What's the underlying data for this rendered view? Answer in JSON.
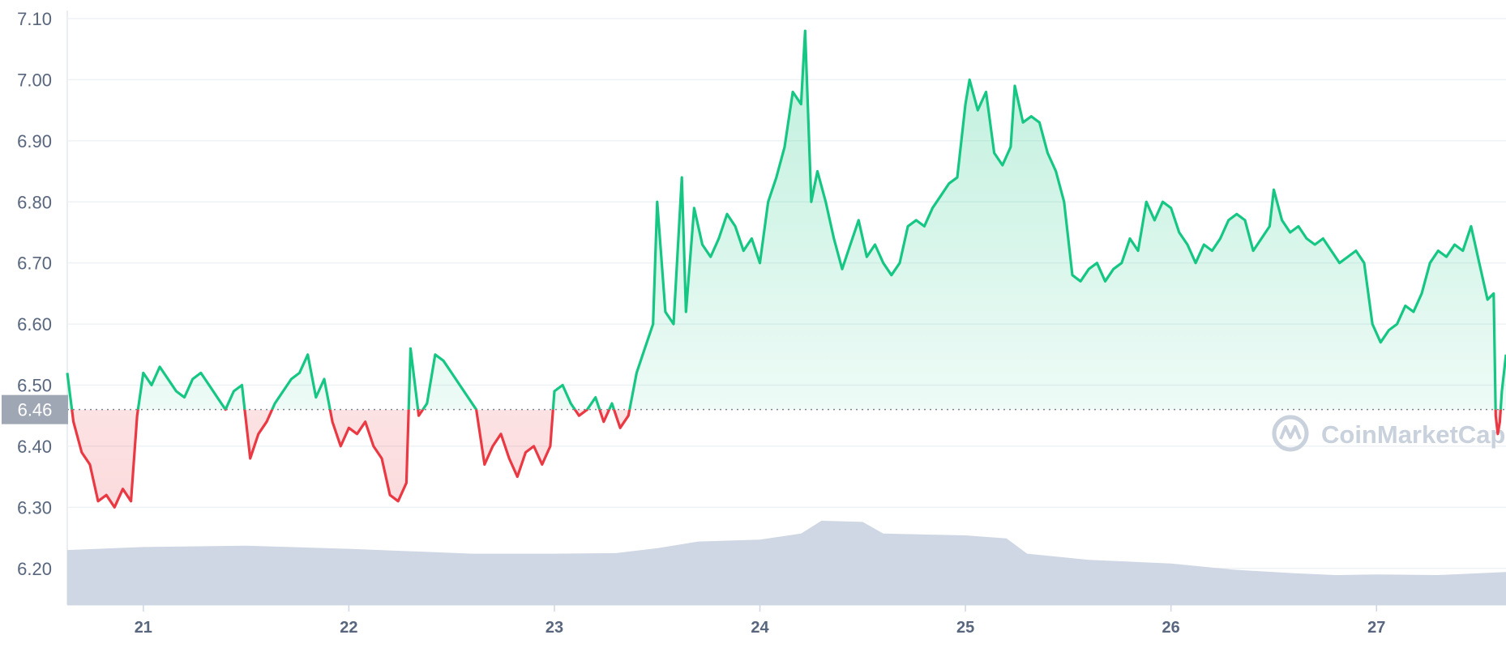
{
  "chart_data": {
    "type": "line",
    "title": "",
    "watermark": "CoinMarketCap",
    "baseline": 6.46,
    "current_price_label": "6.46",
    "yticks": [
      "6.20",
      "6.30",
      "6.40",
      "6.50",
      "6.60",
      "6.70",
      "6.80",
      "6.90",
      "7.00",
      "7.10"
    ],
    "ylim": [
      6.14,
      7.1
    ],
    "xticks": [
      "21",
      "22",
      "23",
      "24",
      "25",
      "26",
      "27"
    ],
    "xlim_days": [
      20.63,
      27.63
    ],
    "grid": true,
    "colors": {
      "up_line": "#16c784",
      "down_line": "#ea3943",
      "volume_fill": "#cfd6e4",
      "axis_text": "#58667e",
      "gridline": "#eff2f5",
      "current_label_bg": "#a0a7b4",
      "watermark": "#c8d1dc"
    },
    "series": [
      {
        "kind": "price",
        "points": [
          [
            20.63,
            6.52
          ],
          [
            20.66,
            6.44
          ],
          [
            20.7,
            6.39
          ],
          [
            20.74,
            6.37
          ],
          [
            20.78,
            6.31
          ],
          [
            20.82,
            6.32
          ],
          [
            20.86,
            6.3
          ],
          [
            20.9,
            6.33
          ],
          [
            20.94,
            6.31
          ],
          [
            20.97,
            6.45
          ],
          [
            21.0,
            6.52
          ],
          [
            21.04,
            6.5
          ],
          [
            21.08,
            6.53
          ],
          [
            21.12,
            6.51
          ],
          [
            21.16,
            6.49
          ],
          [
            21.2,
            6.48
          ],
          [
            21.24,
            6.51
          ],
          [
            21.28,
            6.52
          ],
          [
            21.32,
            6.5
          ],
          [
            21.36,
            6.48
          ],
          [
            21.4,
            6.46
          ],
          [
            21.44,
            6.49
          ],
          [
            21.48,
            6.5
          ],
          [
            21.52,
            6.38
          ],
          [
            21.56,
            6.42
          ],
          [
            21.6,
            6.44
          ],
          [
            21.64,
            6.47
          ],
          [
            21.68,
            6.49
          ],
          [
            21.72,
            6.51
          ],
          [
            21.76,
            6.52
          ],
          [
            21.8,
            6.55
          ],
          [
            21.84,
            6.48
          ],
          [
            21.88,
            6.51
          ],
          [
            21.92,
            6.44
          ],
          [
            21.96,
            6.4
          ],
          [
            22.0,
            6.43
          ],
          [
            22.04,
            6.42
          ],
          [
            22.08,
            6.44
          ],
          [
            22.12,
            6.4
          ],
          [
            22.16,
            6.38
          ],
          [
            22.2,
            6.32
          ],
          [
            22.24,
            6.31
          ],
          [
            22.28,
            6.34
          ],
          [
            22.3,
            6.56
          ],
          [
            22.34,
            6.45
          ],
          [
            22.38,
            6.47
          ],
          [
            22.42,
            6.55
          ],
          [
            22.46,
            6.54
          ],
          [
            22.5,
            6.52
          ],
          [
            22.54,
            6.5
          ],
          [
            22.58,
            6.48
          ],
          [
            22.62,
            6.46
          ],
          [
            22.66,
            6.37
          ],
          [
            22.7,
            6.4
          ],
          [
            22.74,
            6.42
          ],
          [
            22.78,
            6.38
          ],
          [
            22.82,
            6.35
          ],
          [
            22.86,
            6.39
          ],
          [
            22.9,
            6.4
          ],
          [
            22.94,
            6.37
          ],
          [
            22.98,
            6.4
          ],
          [
            23.0,
            6.49
          ],
          [
            23.04,
            6.5
          ],
          [
            23.08,
            6.47
          ],
          [
            23.12,
            6.45
          ],
          [
            23.16,
            6.46
          ],
          [
            23.2,
            6.48
          ],
          [
            23.24,
            6.44
          ],
          [
            23.28,
            6.47
          ],
          [
            23.32,
            6.43
          ],
          [
            23.36,
            6.45
          ],
          [
            23.4,
            6.52
          ],
          [
            23.44,
            6.56
          ],
          [
            23.48,
            6.6
          ],
          [
            23.5,
            6.8
          ],
          [
            23.54,
            6.62
          ],
          [
            23.58,
            6.6
          ],
          [
            23.62,
            6.84
          ],
          [
            23.64,
            6.62
          ],
          [
            23.68,
            6.79
          ],
          [
            23.72,
            6.73
          ],
          [
            23.76,
            6.71
          ],
          [
            23.8,
            6.74
          ],
          [
            23.84,
            6.78
          ],
          [
            23.88,
            6.76
          ],
          [
            23.92,
            6.72
          ],
          [
            23.96,
            6.74
          ],
          [
            24.0,
            6.7
          ],
          [
            24.04,
            6.8
          ],
          [
            24.08,
            6.84
          ],
          [
            24.12,
            6.89
          ],
          [
            24.16,
            6.98
          ],
          [
            24.2,
            6.96
          ],
          [
            24.22,
            7.08
          ],
          [
            24.25,
            6.8
          ],
          [
            24.28,
            6.85
          ],
          [
            24.32,
            6.8
          ],
          [
            24.36,
            6.74
          ],
          [
            24.4,
            6.69
          ],
          [
            24.44,
            6.73
          ],
          [
            24.48,
            6.77
          ],
          [
            24.52,
            6.71
          ],
          [
            24.56,
            6.73
          ],
          [
            24.6,
            6.7
          ],
          [
            24.64,
            6.68
          ],
          [
            24.68,
            6.7
          ],
          [
            24.72,
            6.76
          ],
          [
            24.76,
            6.77
          ],
          [
            24.8,
            6.76
          ],
          [
            24.84,
            6.79
          ],
          [
            24.88,
            6.81
          ],
          [
            24.92,
            6.83
          ],
          [
            24.96,
            6.84
          ],
          [
            25.0,
            6.96
          ],
          [
            25.02,
            7.0
          ],
          [
            25.06,
            6.95
          ],
          [
            25.1,
            6.98
          ],
          [
            25.14,
            6.88
          ],
          [
            25.18,
            6.86
          ],
          [
            25.22,
            6.89
          ],
          [
            25.24,
            6.99
          ],
          [
            25.28,
            6.93
          ],
          [
            25.32,
            6.94
          ],
          [
            25.36,
            6.93
          ],
          [
            25.4,
            6.88
          ],
          [
            25.44,
            6.85
          ],
          [
            25.48,
            6.8
          ],
          [
            25.52,
            6.68
          ],
          [
            25.56,
            6.67
          ],
          [
            25.6,
            6.69
          ],
          [
            25.64,
            6.7
          ],
          [
            25.68,
            6.67
          ],
          [
            25.72,
            6.69
          ],
          [
            25.76,
            6.7
          ],
          [
            25.8,
            6.74
          ],
          [
            25.84,
            6.72
          ],
          [
            25.88,
            6.8
          ],
          [
            25.92,
            6.77
          ],
          [
            25.96,
            6.8
          ],
          [
            26.0,
            6.79
          ],
          [
            26.04,
            6.75
          ],
          [
            26.08,
            6.73
          ],
          [
            26.12,
            6.7
          ],
          [
            26.16,
            6.73
          ],
          [
            26.2,
            6.72
          ],
          [
            26.24,
            6.74
          ],
          [
            26.28,
            6.77
          ],
          [
            26.32,
            6.78
          ],
          [
            26.36,
            6.77
          ],
          [
            26.4,
            6.72
          ],
          [
            26.44,
            6.74
          ],
          [
            26.48,
            6.76
          ],
          [
            26.5,
            6.82
          ],
          [
            26.54,
            6.77
          ],
          [
            26.58,
            6.75
          ],
          [
            26.62,
            6.76
          ],
          [
            26.66,
            6.74
          ],
          [
            26.7,
            6.73
          ],
          [
            26.74,
            6.74
          ],
          [
            26.78,
            6.72
          ],
          [
            26.82,
            6.7
          ],
          [
            26.86,
            6.71
          ],
          [
            26.9,
            6.72
          ],
          [
            26.94,
            6.7
          ],
          [
            26.98,
            6.6
          ],
          [
            27.02,
            6.57
          ],
          [
            27.06,
            6.59
          ],
          [
            27.1,
            6.6
          ],
          [
            27.14,
            6.63
          ],
          [
            27.18,
            6.62
          ],
          [
            27.22,
            6.65
          ],
          [
            27.26,
            6.7
          ],
          [
            27.3,
            6.72
          ],
          [
            27.34,
            6.71
          ],
          [
            27.38,
            6.73
          ],
          [
            27.42,
            6.72
          ],
          [
            27.46,
            6.76
          ],
          [
            27.5,
            6.7
          ],
          [
            27.54,
            6.64
          ],
          [
            27.57,
            6.65
          ],
          [
            27.58,
            6.45
          ],
          [
            27.59,
            6.42
          ],
          [
            27.6,
            6.44
          ],
          [
            27.61,
            6.49
          ],
          [
            27.63,
            6.55
          ]
        ]
      },
      {
        "kind": "volume",
        "points": [
          [
            20.63,
            6.23
          ],
          [
            21.0,
            6.235
          ],
          [
            21.5,
            6.237
          ],
          [
            22.0,
            6.232
          ],
          [
            22.3,
            6.228
          ],
          [
            22.6,
            6.224
          ],
          [
            23.0,
            6.224
          ],
          [
            23.3,
            6.225
          ],
          [
            23.5,
            6.233
          ],
          [
            23.7,
            6.244
          ],
          [
            24.0,
            6.247
          ],
          [
            24.2,
            6.257
          ],
          [
            24.3,
            6.278
          ],
          [
            24.5,
            6.276
          ],
          [
            24.6,
            6.257
          ],
          [
            25.0,
            6.254
          ],
          [
            25.2,
            6.249
          ],
          [
            25.3,
            6.224
          ],
          [
            25.6,
            6.214
          ],
          [
            26.0,
            6.208
          ],
          [
            26.3,
            6.198
          ],
          [
            26.6,
            6.192
          ],
          [
            26.8,
            6.189
          ],
          [
            27.0,
            6.19
          ],
          [
            27.3,
            6.189
          ],
          [
            27.63,
            6.194
          ]
        ]
      }
    ]
  }
}
